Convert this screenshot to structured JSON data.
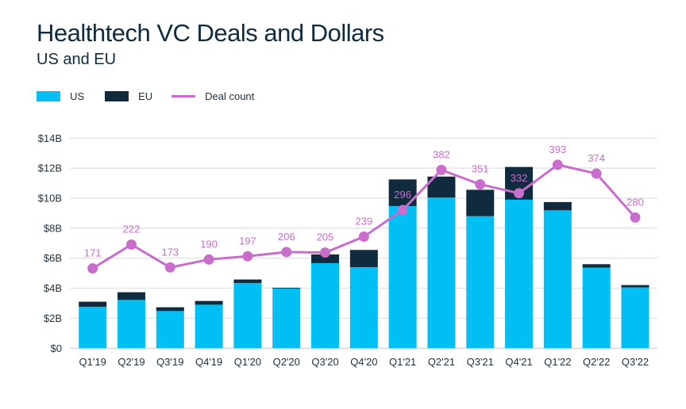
{
  "chart_data": {
    "type": "bar",
    "stacked": true,
    "title": "Healthtech VC Deals and Dollars",
    "subtitle": "US and EU",
    "categories": [
      "Q1'19",
      "Q2'19",
      "Q3'19",
      "Q4'19",
      "Q1'20",
      "Q2'20",
      "Q3'20",
      "Q4'20",
      "Q1'21",
      "Q2'21",
      "Q3'21",
      "Q4'21",
      "Q1'22",
      "Q2'22",
      "Q3'22"
    ],
    "series": [
      {
        "name": "US",
        "color": "#00bff5",
        "values": [
          2.76,
          3.22,
          2.48,
          2.9,
          4.35,
          3.98,
          5.67,
          5.4,
          9.47,
          10.04,
          8.8,
          9.9,
          9.19,
          5.37,
          4.05
        ]
      },
      {
        "name": "EU",
        "color": "#0f2b3d",
        "values": [
          0.34,
          0.51,
          0.25,
          0.25,
          0.23,
          0.05,
          0.58,
          1.15,
          1.78,
          1.4,
          1.76,
          2.18,
          0.55,
          0.23,
          0.16
        ]
      }
    ],
    "line_series": {
      "name": "Deal count",
      "color": "#c86dcc",
      "values": [
        171,
        222,
        173,
        190,
        197,
        206,
        205,
        239,
        296,
        382,
        351,
        332,
        393,
        374,
        280
      ],
      "ylim": [
        0,
        450
      ],
      "axis_visible": false
    },
    "yticks": [
      "$0",
      "$2B",
      "$4B",
      "$6B",
      "$8B",
      "$10B",
      "$12B",
      "$14B"
    ],
    "ylim": [
      0,
      14
    ],
    "grid": true,
    "legend_position": "top-left",
    "xlabel": "",
    "ylabel": ""
  }
}
